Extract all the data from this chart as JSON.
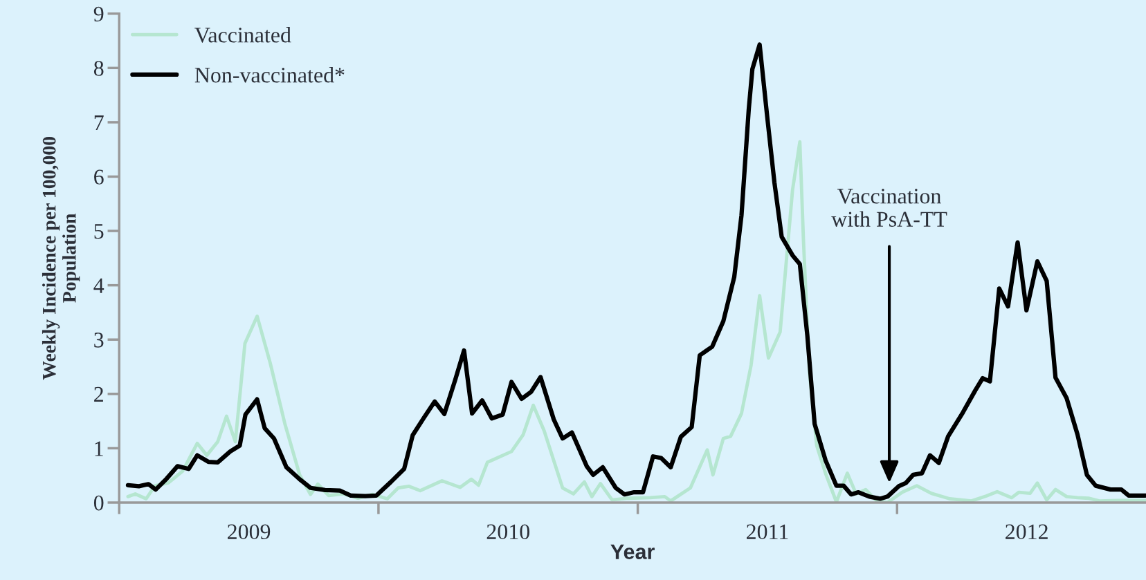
{
  "chart_data": {
    "type": "line",
    "xlabel": "Year",
    "ylabel": "Weekly Incidence per 100,000\nPopulation",
    "xlim": [
      2009,
      2012.96
    ],
    "xticks": [
      {
        "value": 2009.5,
        "label": "2009"
      },
      {
        "value": 2010.5,
        "label": "2010"
      },
      {
        "value": 2011.5,
        "label": "2011"
      },
      {
        "value": 2012.5,
        "label": "2012"
      }
    ],
    "ylim": [
      0,
      9
    ],
    "yticks": [
      0,
      1,
      2,
      3,
      4,
      5,
      6,
      7,
      8,
      9
    ],
    "grid": false,
    "legend": "top left",
    "marker": "none",
    "line_style": "solid",
    "annotations": [
      "Vaccination\nwith PsA-TT"
    ],
    "series": [
      {
        "name": "Vaccinated",
        "color": "#b5e6d0",
        "x": [
          2009.034,
          2009.062,
          2009.104,
          2009.138,
          2009.189,
          2009.245,
          2009.301,
          2009.338,
          2009.38,
          2009.414,
          2009.448,
          2009.485,
          2009.532,
          2009.583,
          2009.639,
          2009.696,
          2009.738,
          2009.766,
          2009.808,
          2009.865,
          2009.921,
          2009.977,
          2010.034,
          2010.076,
          2010.118,
          2010.161,
          2010.245,
          2010.315,
          2010.358,
          2010.386,
          2010.42,
          2010.513,
          2010.558,
          2010.597,
          2010.639,
          2010.71,
          2010.752,
          2010.794,
          2010.823,
          2010.856,
          2010.901,
          2010.963,
          2011.048,
          2011.104,
          2011.127,
          2011.203,
          2011.268,
          2011.29,
          2011.33,
          2011.358,
          2011.4,
          2011.437,
          2011.47,
          2011.504,
          2011.549,
          2011.597,
          2011.625,
          2011.639,
          2011.662,
          2011.69,
          2011.724,
          2011.766,
          2011.808,
          2011.842,
          2011.879,
          2011.921,
          2011.963,
          2012.02,
          2012.076,
          2012.132,
          2012.203,
          2012.287,
          2012.344,
          2012.386,
          2012.442,
          2012.47,
          2012.513,
          2012.541,
          2012.577,
          2012.611,
          2012.654,
          2012.696,
          2012.738,
          2012.78,
          2012.851,
          2012.958
        ],
        "values": [
          0.11,
          0.16,
          0.07,
          0.31,
          0.36,
          0.58,
          1.09,
          0.87,
          1.12,
          1.59,
          1.12,
          2.93,
          3.43,
          2.56,
          1.45,
          0.51,
          0.15,
          0.34,
          0.13,
          0.16,
          0.08,
          0.15,
          0.07,
          0.27,
          0.3,
          0.22,
          0.4,
          0.28,
          0.43,
          0.32,
          0.74,
          0.94,
          1.25,
          1.79,
          1.32,
          0.27,
          0.16,
          0.38,
          0.11,
          0.35,
          0.05,
          0.08,
          0.09,
          0.11,
          0.03,
          0.27,
          0.97,
          0.51,
          1.18,
          1.22,
          1.64,
          2.53,
          3.81,
          2.66,
          3.14,
          5.76,
          6.64,
          4.82,
          2.4,
          1.05,
          0.54,
          0.01,
          0.54,
          0.16,
          0.24,
          0.03,
          0.0,
          0.19,
          0.31,
          0.17,
          0.07,
          0.03,
          0.12,
          0.2,
          0.09,
          0.19,
          0.17,
          0.36,
          0.05,
          0.24,
          0.11,
          0.09,
          0.08,
          0.03,
          0.04,
          0.04
        ]
      },
      {
        "name": "Non-vaccinated*",
        "color": "#000000",
        "x": [
          2009.034,
          2009.076,
          2009.113,
          2009.141,
          2009.183,
          2009.225,
          2009.268,
          2009.301,
          2009.344,
          2009.38,
          2009.428,
          2009.465,
          2009.487,
          2009.532,
          2009.561,
          2009.597,
          2009.645,
          2009.696,
          2009.738,
          2009.794,
          2009.851,
          2009.893,
          2009.949,
          2009.992,
          2010.048,
          2010.099,
          2010.132,
          2010.175,
          2010.217,
          2010.254,
          2010.296,
          2010.33,
          2010.361,
          2010.4,
          2010.437,
          2010.479,
          2010.513,
          2010.552,
          2010.589,
          2010.625,
          2010.676,
          2010.71,
          2010.746,
          2010.803,
          2010.828,
          2010.865,
          2010.915,
          2010.949,
          2010.986,
          2011.02,
          2011.059,
          2011.09,
          2011.127,
          2011.166,
          2011.208,
          2011.239,
          2011.287,
          2011.33,
          2011.372,
          2011.4,
          2011.428,
          2011.442,
          2011.47,
          2011.499,
          2011.527,
          2011.555,
          2011.597,
          2011.625,
          2011.654,
          2011.682,
          2011.724,
          2011.766,
          2011.794,
          2011.823,
          2011.851,
          2011.893,
          2011.935,
          2011.963,
          2012.006,
          2012.034,
          2012.062,
          2012.096,
          2012.127,
          2012.161,
          2012.197,
          2012.254,
          2012.301,
          2012.33,
          2012.358,
          2012.394,
          2012.428,
          2012.465,
          2012.499,
          2012.541,
          2012.577,
          2012.611,
          2012.654,
          2012.696,
          2012.732,
          2012.766,
          2012.823,
          2012.865,
          2012.893,
          2012.958
        ],
        "values": [
          0.32,
          0.3,
          0.34,
          0.24,
          0.44,
          0.67,
          0.62,
          0.87,
          0.75,
          0.74,
          0.94,
          1.05,
          1.62,
          1.9,
          1.37,
          1.18,
          0.65,
          0.43,
          0.27,
          0.23,
          0.22,
          0.13,
          0.12,
          0.13,
          0.38,
          0.62,
          1.24,
          1.56,
          1.86,
          1.63,
          2.26,
          2.8,
          1.64,
          1.88,
          1.55,
          1.62,
          2.22,
          1.91,
          2.04,
          2.31,
          1.53,
          1.18,
          1.29,
          0.67,
          0.51,
          0.65,
          0.27,
          0.15,
          0.19,
          0.19,
          0.85,
          0.82,
          0.65,
          1.21,
          1.39,
          2.71,
          2.87,
          3.34,
          4.15,
          5.29,
          7.24,
          7.98,
          8.43,
          7.11,
          5.89,
          4.89,
          4.55,
          4.39,
          3.07,
          1.45,
          0.78,
          0.31,
          0.31,
          0.15,
          0.19,
          0.11,
          0.07,
          0.11,
          0.3,
          0.36,
          0.51,
          0.54,
          0.87,
          0.73,
          1.22,
          1.66,
          2.06,
          2.29,
          2.23,
          3.94,
          3.61,
          4.79,
          3.54,
          4.44,
          4.08,
          2.3,
          1.92,
          1.25,
          0.51,
          0.31,
          0.24,
          0.24,
          0.13,
          0.13
        ]
      }
    ]
  }
}
